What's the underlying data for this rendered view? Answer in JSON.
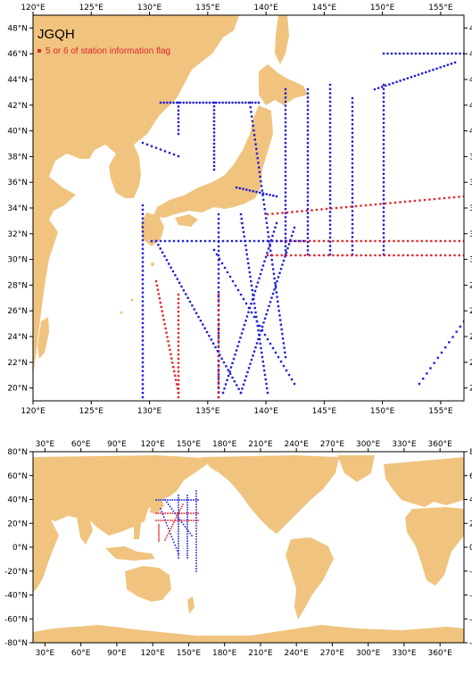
{
  "station_code": "JGQH",
  "legend_label": "5 or 6 of station information flag",
  "colors": {
    "land": "#f0c47f",
    "ocean": "#ffffff",
    "station": "#1f1fd6",
    "flagged": "#e0262b",
    "frame": "#000000"
  },
  "top_map": {
    "lon_range": [
      120,
      157
    ],
    "lat_range": [
      19,
      49
    ],
    "lon_ticks": [
      "120°E",
      "125°E",
      "130°E",
      "135°E",
      "140°E",
      "145°E",
      "150°E",
      "155°E"
    ],
    "lat_ticks": [
      "20°N",
      "22°N",
      "24°N",
      "26°N",
      "28°N",
      "30°N",
      "32°N",
      "34°N",
      "36°N",
      "38°N",
      "40°N",
      "42°N",
      "44°N",
      "46°N",
      "48°N"
    ]
  },
  "bottom_map": {
    "lon_range": [
      20,
      380
    ],
    "lat_range": [
      -80,
      80
    ],
    "lon_ticks": [
      "30°E",
      "60°E",
      "90°E",
      "120°E",
      "150°E",
      "180°E",
      "210°E",
      "240°E",
      "270°E",
      "300°E",
      "330°E",
      "360°E"
    ],
    "lat_ticks": [
      "80°N",
      "60°N",
      "40°N",
      "20°N",
      "0°N",
      "-20°N",
      "-40°N",
      "-60°N",
      "-80°N"
    ]
  }
}
